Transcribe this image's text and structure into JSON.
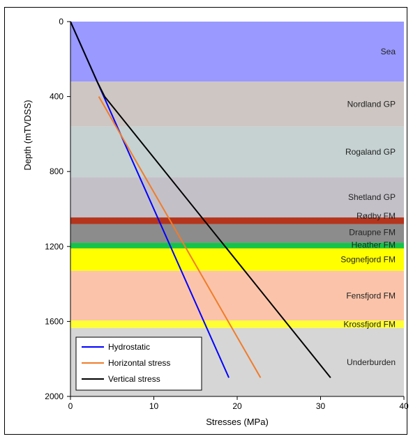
{
  "chart_data": {
    "type": "line",
    "xlabel": "Stresses (MPa)",
    "ylabel": "Depth (mTVDSS)",
    "xlim": [
      0,
      40
    ],
    "ylim": [
      0,
      2000
    ],
    "y_inverted": true,
    "xticks": [
      "0",
      "10",
      "20",
      "30",
      "40"
    ],
    "yticks": [
      "0",
      "400",
      "800",
      "1200",
      "1600",
      "2000"
    ],
    "layers": [
      {
        "name": "Sea",
        "top": 0,
        "bottom": 320,
        "color": "#9999ff"
      },
      {
        "name": "Nordland GP",
        "top": 320,
        "bottom": 560,
        "color": "#cdc6c3"
      },
      {
        "name": "Rogaland GP",
        "top": 560,
        "bottom": 830,
        "color": "#c6d2d2"
      },
      {
        "name": "Shetland GP",
        "top": 830,
        "bottom": 1045,
        "color": "#c4c0c8"
      },
      {
        "name": "Rødby FM",
        "top": 1045,
        "bottom": 1080,
        "color": "#b5341c"
      },
      {
        "name": "Draupne FM",
        "top": 1080,
        "bottom": 1180,
        "color": "#8c8c8c"
      },
      {
        "name": "Heather FM",
        "top": 1180,
        "bottom": 1210,
        "color": "#16c24a"
      },
      {
        "name": "Sognefjord FM",
        "top": 1210,
        "bottom": 1330,
        "color": "#ffff00"
      },
      {
        "name": "Fensfjord FM",
        "top": 1330,
        "bottom": 1595,
        "color": "#fbc4aa"
      },
      {
        "name": "Krossfjord FM",
        "top": 1595,
        "bottom": 1635,
        "color": "#ffff33"
      },
      {
        "name": "Underburden",
        "top": 1635,
        "bottom": 2000,
        "color": "#d6d6d6"
      }
    ],
    "series": [
      {
        "name": "Hydrostatic",
        "color": "#0000ff",
        "points": [
          [
            0,
            0
          ],
          [
            19,
            1900
          ]
        ]
      },
      {
        "name": "Horizontal stress",
        "color": "#f07c2a",
        "points": [
          [
            3.4,
            400
          ],
          [
            22.8,
            1900
          ]
        ]
      },
      {
        "name": "Vertical stress",
        "color": "#000000",
        "points": [
          [
            0,
            0
          ],
          [
            3.2,
            320
          ],
          [
            4.1,
            400
          ],
          [
            31.2,
            1900
          ]
        ]
      }
    ],
    "legend_position": "bottom-left",
    "grid": false
  }
}
